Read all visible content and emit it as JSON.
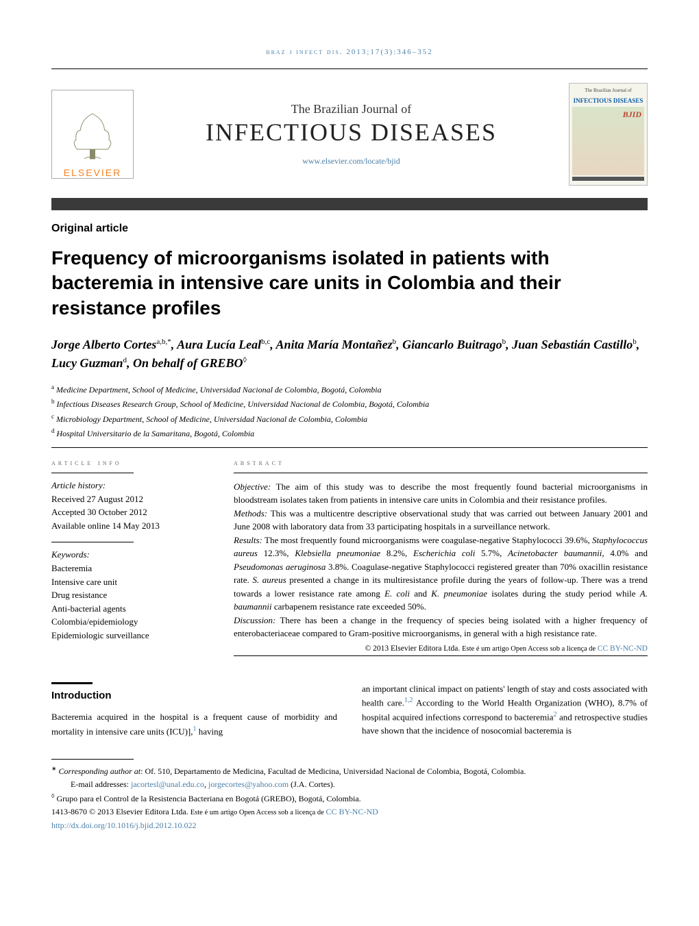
{
  "running_head": "braz j infect dis. 2013;17(3):346–352",
  "publisher": {
    "name": "ELSEVIER",
    "tree_color": "#8a8a6a"
  },
  "journal": {
    "super": "The Brazilian Journal of",
    "title": "INFECTIOUS DISEASES",
    "link": "www.elsevier.com/locate/bjid",
    "cover_label_top": "The Brazilian Journal of",
    "cover_label_main": "INFECTIOUS DISEASES",
    "cover_bjid": "BJID"
  },
  "section_label": "Original article",
  "article_title": "Frequency of microorganisms isolated in patients with bacteremia in intensive care units in Colombia and their resistance profiles",
  "authors_html": "Jorge Alberto Cortes<sup>a,b,*</sup>, Aura Lucía Leal<sup>b,c</sup>, Anita María Montañez<sup>b</sup>, Giancarlo Buitrago<sup>b</sup>, Juan Sebastián Castillo<sup>b</sup>, Lucy Guzman<sup>d</sup>, On behalf of GREBO<sup>◊</sup>",
  "affiliations": [
    "<sup>a</sup> Medicine Department, School of Medicine, Universidad Nacional de Colombia, Bogotá, Colombia",
    "<sup>b</sup> Infectious Diseases Research Group, School of Medicine, Universidad Nacional de Colombia, Bogotá, Colombia",
    "<sup>c</sup> Microbiology Department, School of Medicine, Universidad Nacional de Colombia, Colombia",
    "<sup>d</sup> Hospital Universitario de la Samaritana, Bogotá, Colombia"
  ],
  "article_info": {
    "head": "article info",
    "history_label": "Article history:",
    "received": "Received 27 August 2012",
    "accepted": "Accepted 30 October 2012",
    "online": "Available online 14 May 2013",
    "keywords_label": "Keywords:",
    "keywords": [
      "Bacteremia",
      "Intensive care unit",
      "Drug resistance",
      "Anti-bacterial agents",
      "Colombia/epidemiology",
      "Epidemiologic surveillance"
    ]
  },
  "abstract": {
    "head": "abstract",
    "objective": "Objective: The aim of this study was to describe the most frequently found bacterial microorganisms in bloodstream isolates taken from patients in intensive care units in Colombia and their resistance profiles.",
    "methods": "Methods: This was a multicentre descriptive observational study that was carried out between January 2001 and June 2008 with laboratory data from 33 participating hospitals in a surveillance network.",
    "results": "Results: The most frequently found microorganisms were coagulase-negative Staphylococci 39.6%, Staphylococcus aureus 12.3%, Klebsiella pneumoniae 8.2%, Escherichia coli 5.7%, Acinetobacter baumannii, 4.0% and Pseudomonas aeruginosa 3.8%. Coagulase-negative Staphylococci registered greater than 70% oxacillin resistance rate. S. aureus presented a change in its multiresistance profile during the years of follow-up. There was a trend towards a lower resistance rate among E. coli and K. pneumoniae isolates during the study period while A. baumannii carbapenem resistance rate exceeded 50%.",
    "discussion": "Discussion: There has been a change in the frequency of species being isolated with a higher frequency of enterobacteriaceae compared to Gram-positive microorganisms, in general with a high resistance rate.",
    "copyright": "© 2013 Elsevier Editora Ltda. ",
    "copyright_open": "Este é um artigo Open Access sob a licença de ",
    "copyright_link": "CC BY-NC-ND"
  },
  "introduction": {
    "heading": "Introduction",
    "left": "Bacteremia acquired in the hospital is a frequent cause of morbidity and mortality in intensive care units (ICU)],<sup class=\"cite-sup\">1</sup> having",
    "right": "an important clinical impact on patients' length of stay and costs associated with health care.<sup class=\"cite-sup\">1,2</sup> According to the World Health Organization (WHO), 8.7% of hospital acquired infections correspond to bacteremia<sup class=\"cite-sup\">2</sup> and retrospective studies have shown that the incidence of nosocomial bacteremia is"
  },
  "footnotes": {
    "corresponding": "* Corresponding author at: Of. 510, Departamento de Medicina, Facultad de Medicina, Universidad Nacional de Colombia, Bogotá, Colombia.",
    "email_label": "E-mail addresses: ",
    "email1": "jacortesl@unal.edu.co",
    "email2": "jorgecortes@yahoo.com",
    "email_author": " (J.A. Cortes).",
    "grebo": "◊ Grupo para el Control de la Resistencia Bacteriana en Bogotá (GREBO), Bogotá, Colombia.",
    "issn_line": "1413-8670 © 2013 Elsevier Editora Ltda. ",
    "issn_open": "Este é um artigo Open Access sob a licença de ",
    "issn_link": "CC BY-NC-ND",
    "doi": "http://dx.doi.org/10.1016/j.bjid.2012.10.022"
  },
  "colors": {
    "link": "#4a7fa8",
    "orange": "#f58220",
    "band": "#3a3a3a"
  }
}
